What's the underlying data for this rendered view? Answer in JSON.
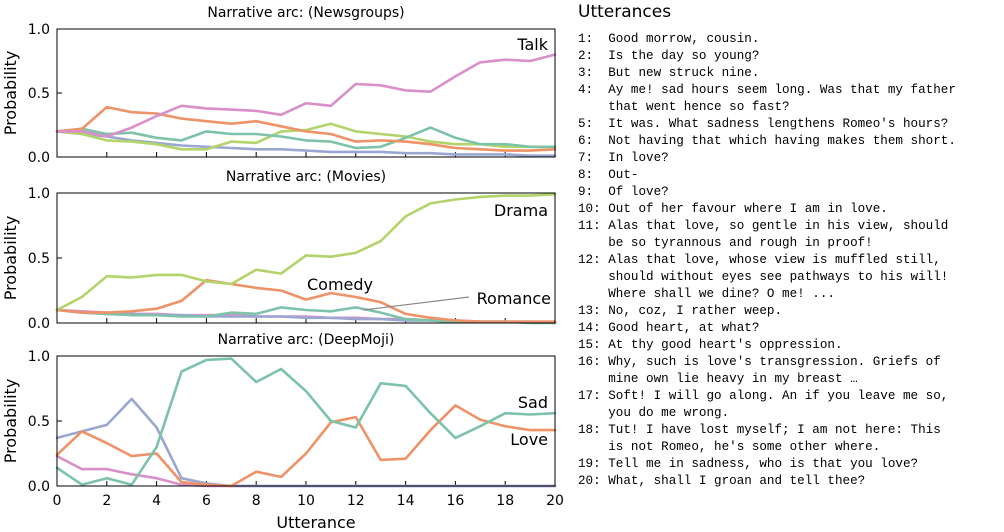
{
  "chart_data": [
    {
      "type": "line",
      "title": "Narrative arc: (Newsgroups)",
      "ylabel": "Probability",
      "xlabel": "",
      "xlim": [
        0,
        20
      ],
      "ylim": [
        0,
        1.0
      ],
      "yticks": [
        "0.0",
        "0.5",
        "1.0"
      ],
      "x": [
        0,
        1,
        2,
        3,
        4,
        5,
        6,
        7,
        8,
        9,
        10,
        11,
        12,
        13,
        14,
        15,
        16,
        17,
        18,
        19,
        20
      ],
      "series": [
        {
          "name": "Talk",
          "color": "#d98fc9",
          "label": "Talk",
          "values": [
            0.2,
            0.2,
            0.16,
            0.23,
            0.32,
            0.4,
            0.38,
            0.37,
            0.36,
            0.33,
            0.42,
            0.4,
            0.57,
            0.56,
            0.52,
            0.51,
            0.63,
            0.74,
            0.76,
            0.75,
            0.8
          ]
        },
        {
          "color": "#ee9268",
          "values": [
            0.2,
            0.22,
            0.39,
            0.35,
            0.34,
            0.3,
            0.28,
            0.26,
            0.28,
            0.24,
            0.2,
            0.18,
            0.12,
            0.13,
            0.12,
            0.1,
            0.07,
            0.06,
            0.05,
            0.05,
            0.06
          ]
        },
        {
          "color": "#7cc3a8",
          "values": [
            0.2,
            0.22,
            0.18,
            0.19,
            0.15,
            0.13,
            0.2,
            0.18,
            0.18,
            0.16,
            0.13,
            0.12,
            0.07,
            0.08,
            0.15,
            0.23,
            0.15,
            0.1,
            0.1,
            0.08,
            0.08
          ]
        },
        {
          "color": "#b2d46a",
          "values": [
            0.2,
            0.18,
            0.13,
            0.12,
            0.1,
            0.06,
            0.06,
            0.12,
            0.11,
            0.2,
            0.21,
            0.26,
            0.2,
            0.18,
            0.16,
            0.12,
            0.1,
            0.1,
            0.08,
            0.08,
            0.08
          ]
        },
        {
          "color": "#9aa7d3",
          "values": [
            0.2,
            0.18,
            0.16,
            0.13,
            0.11,
            0.09,
            0.08,
            0.07,
            0.06,
            0.06,
            0.05,
            0.04,
            0.04,
            0.04,
            0.03,
            0.03,
            0.02,
            0.02,
            0.02,
            0.01,
            0.01
          ]
        }
      ]
    },
    {
      "type": "line",
      "title": "Narrative arc: (Movies)",
      "ylabel": "Probability",
      "xlabel": "",
      "xlim": [
        0,
        20
      ],
      "ylim": [
        0,
        1.0
      ],
      "yticks": [
        "0.0",
        "0.5",
        "1.0"
      ],
      "x": [
        0,
        1,
        2,
        3,
        4,
        5,
        6,
        7,
        8,
        9,
        10,
        11,
        12,
        13,
        14,
        15,
        16,
        17,
        18,
        19,
        20
      ],
      "series": [
        {
          "name": "Drama",
          "color": "#b2d46a",
          "label": "Drama",
          "values": [
            0.1,
            0.2,
            0.36,
            0.35,
            0.37,
            0.37,
            0.32,
            0.3,
            0.41,
            0.38,
            0.52,
            0.51,
            0.54,
            0.63,
            0.82,
            0.92,
            0.95,
            0.97,
            0.98,
            0.98,
            0.99
          ]
        },
        {
          "name": "Comedy",
          "color": "#ee9268",
          "label": "Comedy",
          "values": [
            0.1,
            0.08,
            0.08,
            0.09,
            0.11,
            0.17,
            0.33,
            0.3,
            0.27,
            0.25,
            0.18,
            0.23,
            0.2,
            0.16,
            0.07,
            0.04,
            0.02,
            0.01,
            0.01,
            0.01,
            0.01
          ]
        },
        {
          "name": "Romance",
          "color": "#7cc3a8",
          "label": "Romance",
          "values": [
            0.1,
            0.08,
            0.07,
            0.06,
            0.06,
            0.05,
            0.05,
            0.08,
            0.07,
            0.12,
            0.1,
            0.09,
            0.12,
            0.08,
            0.03,
            0.02,
            0.01,
            0.01,
            0.01,
            0.0,
            0.0
          ]
        },
        {
          "color": "#9aa7d3",
          "values": [
            0.1,
            0.08,
            0.07,
            0.07,
            0.06,
            0.06,
            0.05,
            0.05,
            0.05,
            0.05,
            0.04,
            0.04,
            0.03,
            0.03,
            0.02,
            0.02,
            0.01,
            0.01,
            0.01,
            0.01,
            0.0
          ]
        },
        {
          "color": "#d98fc9",
          "values": [
            0.1,
            0.09,
            0.08,
            0.07,
            0.07,
            0.06,
            0.06,
            0.06,
            0.05,
            0.05,
            0.05,
            0.04,
            0.04,
            0.03,
            0.03,
            0.02,
            0.02,
            0.01,
            0.01,
            0.01,
            0.01
          ]
        }
      ]
    },
    {
      "type": "line",
      "title": "Narrative arc: (DeepMoji)",
      "ylabel": "Probability",
      "xlabel": "Utterance",
      "xlim": [
        0,
        20
      ],
      "ylim": [
        0,
        1.0
      ],
      "yticks": [
        "0.0",
        "0.5",
        "1.0"
      ],
      "xticks": [
        "0",
        "2",
        "4",
        "6",
        "8",
        "10",
        "12",
        "14",
        "16",
        "18",
        "20"
      ],
      "x": [
        0,
        1,
        2,
        3,
        4,
        5,
        6,
        7,
        8,
        9,
        10,
        11,
        12,
        13,
        14,
        15,
        16,
        17,
        18,
        19,
        20
      ],
      "series": [
        {
          "name": "Sad",
          "color": "#7cc3a8",
          "label": "Sad",
          "values": [
            0.14,
            0.01,
            0.06,
            0.01,
            0.3,
            0.88,
            0.97,
            0.98,
            0.8,
            0.9,
            0.73,
            0.5,
            0.45,
            0.79,
            0.77,
            0.56,
            0.37,
            0.46,
            0.56,
            0.55,
            0.56
          ]
        },
        {
          "name": "Love",
          "color": "#ee9268",
          "label": "Love",
          "values": [
            0.24,
            0.42,
            0.33,
            0.23,
            0.25,
            0.03,
            0.01,
            0.0,
            0.11,
            0.07,
            0.25,
            0.49,
            0.53,
            0.2,
            0.21,
            0.43,
            0.62,
            0.51,
            0.46,
            0.43,
            0.43
          ]
        },
        {
          "color": "#9aa7d3",
          "values": [
            0.37,
            0.42,
            0.47,
            0.67,
            0.45,
            0.06,
            0.02,
            0.0,
            0.0,
            0.0,
            0.0,
            0.0,
            0.0,
            0.0,
            0.0,
            0.0,
            0.0,
            0.0,
            0.0,
            0.0,
            0.0
          ]
        },
        {
          "color": "#d98fc9",
          "values": [
            0.23,
            0.13,
            0.13,
            0.09,
            0.06,
            0.01,
            0.0,
            0.0,
            0.0,
            0.0,
            0.0,
            0.0,
            0.0,
            0.0,
            0.0,
            0.0,
            0.0,
            0.0,
            0.0,
            0.0,
            0.0
          ]
        }
      ]
    }
  ],
  "utterances": {
    "title": "Utterances",
    "lines": [
      "1:  Good morrow, cousin.",
      "2:  Is the day so young?",
      "3:  But new struck nine.",
      "4:  Ay me! sad hours seem long. Was that my father",
      "    that went hence so fast?",
      "5:  It was. What sadness lengthens Romeo's hours?",
      "6:  Not having that which having makes them short.",
      "7:  In love?",
      "8:  Out-",
      "9:  Of love?",
      "10: Out of her favour where I am in love.",
      "11: Alas that love, so gentle in his view, should",
      "    be so tyrannous and rough in proof!",
      "12: Alas that love, whose view is muffled still,",
      "    should without eyes see pathways to his will!",
      "    Where shall we dine? O me! ...",
      "13: No, coz, I rather weep.",
      "14: Good heart, at what?",
      "15: At thy good heart's oppression.",
      "16: Why, such is love's transgression. Griefs of",
      "    mine own lie heavy in my breast …",
      "17: Soft! I will go along. An if you leave me so,",
      "    you do me wrong.",
      "18: Tut! I have lost myself; I am not here: This",
      "    is not Romeo, he's some other where.",
      "19: Tell me in sadness, who is that you love?",
      "20: What, shall I groan and tell thee?"
    ]
  }
}
